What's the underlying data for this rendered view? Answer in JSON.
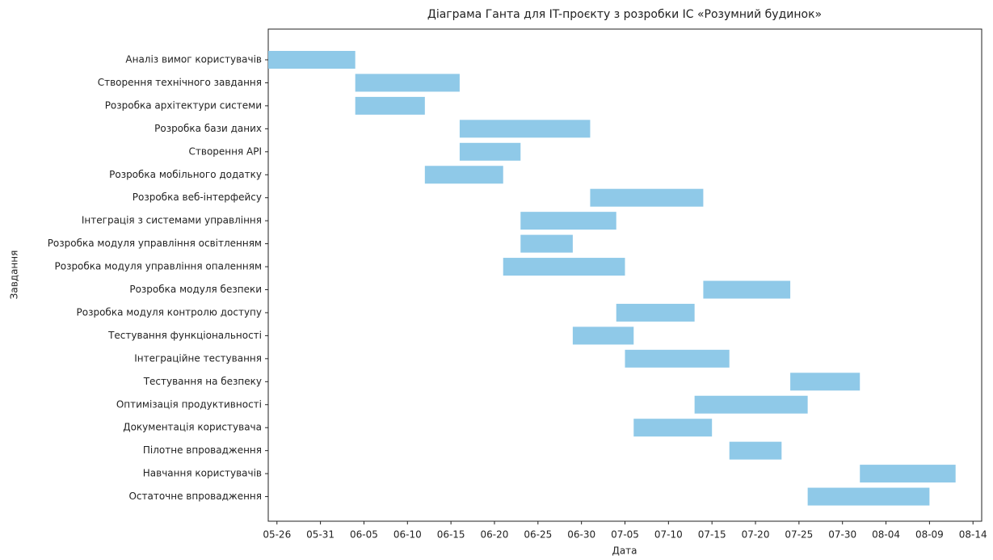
{
  "chart_data": {
    "type": "gantt",
    "title": "Діаграма Ганта для IT-проєкту з розробки ІС «Розумний будинок»",
    "x_label": "Дата",
    "y_label": "Завдання",
    "categories": [
      "Аналіз вимог користувачів",
      "Створення технічного завдання",
      "Розробка архітектури системи",
      "Розробка бази даних",
      "Створення API",
      "Розробка мобільного додатку",
      "Розробка веб-інтерфейсу",
      "Інтеграція з системами управління",
      "Розробка модуля управління освітленням",
      "Розробка модуля управління опаленням",
      "Розробка модуля безпеки",
      "Розробка модуля контролю доступу",
      "Тестування функціональності",
      "Інтеграційне тестування",
      "Тестування на безпеку",
      "Оптимізація продуктивності",
      "Документація користувача",
      "Пілотне впровадження",
      "Навчання користувачів",
      "Остаточне впровадження"
    ],
    "start": [
      "05-25",
      "06-04",
      "06-04",
      "06-16",
      "06-16",
      "06-12",
      "07-01",
      "06-23",
      "06-23",
      "06-21",
      "07-14",
      "07-04",
      "06-29",
      "07-05",
      "07-24",
      "07-13",
      "07-06",
      "07-17",
      "08-01",
      "07-26"
    ],
    "end": [
      "06-04",
      "06-16",
      "06-12",
      "07-01",
      "06-23",
      "06-21",
      "07-14",
      "07-04",
      "06-29",
      "07-05",
      "07-24",
      "07-13",
      "07-06",
      "07-17",
      "08-01",
      "07-26",
      "07-15",
      "07-23",
      "08-12",
      "08-09"
    ],
    "color": "#8fc9e8",
    "xlim": [
      "05-25",
      "08-15"
    ],
    "xticks": [
      "05-26",
      "05-31",
      "06-05",
      "06-10",
      "06-15",
      "06-20",
      "06-25",
      "06-30",
      "07-05",
      "07-10",
      "07-15",
      "07-20",
      "07-25",
      "07-30",
      "08-04",
      "08-09",
      "08-14"
    ]
  }
}
